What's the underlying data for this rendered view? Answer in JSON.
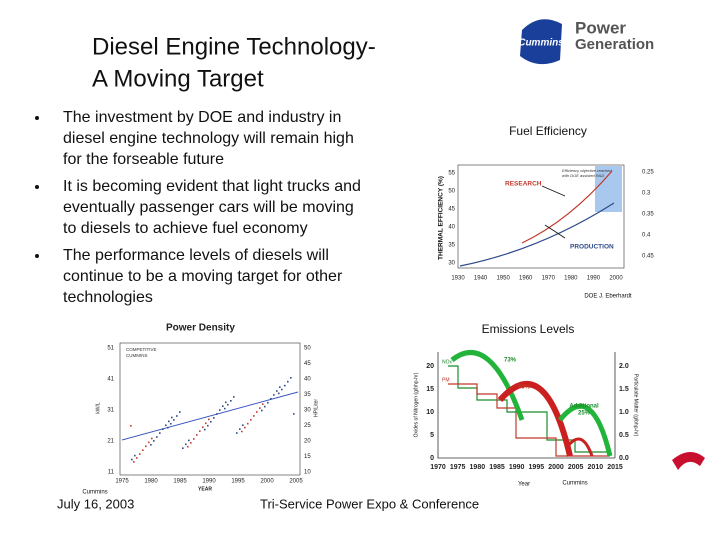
{
  "header": {
    "title_lines": [
      "Diesel Engine Technology-",
      "A Moving Target"
    ],
    "logo": {
      "brand": "Cummins",
      "line1": "Power",
      "line2": "Generation"
    }
  },
  "bullets": [
    [
      "The investment by DOE and industry in",
      "diesel engine technology will remain high",
      "for the forseable future"
    ],
    [
      "It is becoming  evident that light trucks and",
      "eventually passenger cars will be moving",
      "to diesels to achieve fuel economy"
    ],
    [
      "The performance levels of diesels will",
      "continue to be a moving target for other",
      "technologies"
    ]
  ],
  "fuel_chart": {
    "title": "Fuel Efficiency",
    "y_label": "THERMAL EFFICIENCY (%)",
    "yticks": [
      30,
      35,
      40,
      45,
      50,
      55
    ],
    "y2ticks": [
      0.25,
      0.3,
      0.35,
      0.4,
      0.45
    ],
    "xticks": [
      1930,
      1940,
      1950,
      1960,
      1970,
      1980,
      1990,
      2000
    ],
    "research": "RESEARCH",
    "production": "PRODUCTION",
    "note": [
      "Efficiency objective reached",
      "with DOE assisted R&D"
    ],
    "credit": "DOE J. Eberhardt"
  },
  "power_chart": {
    "title": "Power Density",
    "legend": [
      "COMPETITIVE",
      "CUMMINS"
    ],
    "x_label": "YEAR",
    "y_label": "kW/L",
    "y2_label": "HP/Liter",
    "yticks": [
      11,
      21,
      31,
      41,
      51
    ],
    "y2ticks": [
      10,
      15,
      20,
      25,
      30,
      35,
      40,
      45,
      50
    ],
    "xticks": [
      1975,
      1980,
      1985,
      1990,
      1995,
      2000,
      2005
    ]
  },
  "emissions_chart": {
    "title": "Emissions Levels",
    "y_label": "Oxides of Nitrogen (g/bhp-hr)",
    "y2_label": "Particulate Matter (g/bhp-hr)",
    "x_label": "Year",
    "yticks": [
      0,
      5,
      10,
      15,
      20
    ],
    "y2ticks": [
      "0.0",
      "0.5",
      "1.0",
      "1.5",
      "2.0"
    ],
    "xticks": [
      1970,
      1975,
      1980,
      1985,
      1990,
      1995,
      2000,
      2005,
      2010,
      2015
    ],
    "nox": "NOx",
    "pm": "PM",
    "nox_cut": "73%",
    "pm_cut": "90%",
    "additional": [
      "Additional",
      "25%"
    ],
    "credit": "Cummins"
  },
  "footer": {
    "date": "July 16, 2003",
    "event": "Tri-Service Power Expo & Conference",
    "credit": "Cummins"
  }
}
